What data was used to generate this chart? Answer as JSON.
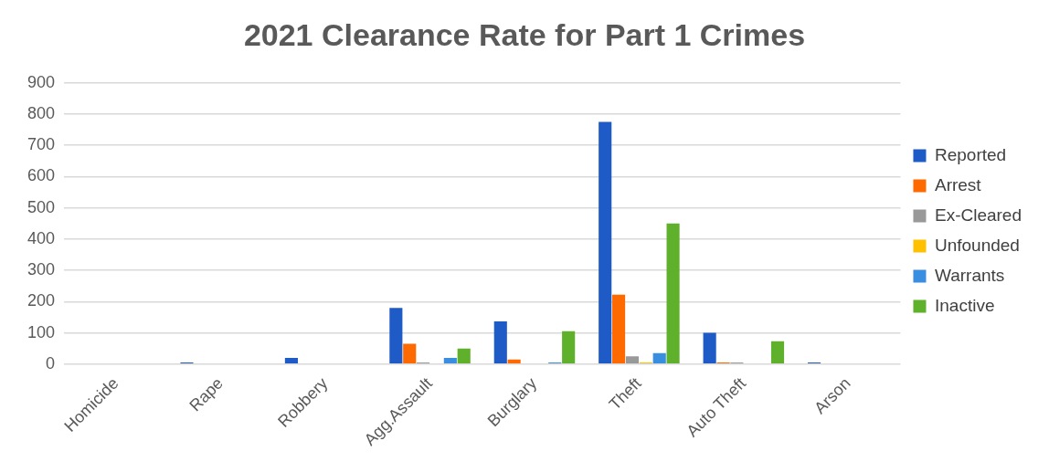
{
  "chart_data": {
    "type": "bar",
    "title": "2021 Clearance Rate for Part 1 Crimes",
    "categories": [
      "Homicide",
      "Rape",
      "Robbery",
      "Agg.Assault",
      "Burglary",
      "Theft",
      "Auto Theft",
      "Arson"
    ],
    "series": [
      {
        "name": "Reported",
        "color": "#1f5bc6",
        "values": [
          0,
          5,
          20,
          180,
          137,
          775,
          100,
          5
        ]
      },
      {
        "name": "Arrest",
        "color": "#ff6a00",
        "values": [
          0,
          0,
          0,
          65,
          15,
          222,
          5,
          0
        ]
      },
      {
        "name": "Ex-Cleared",
        "color": "#999999",
        "values": [
          0,
          0,
          0,
          5,
          0,
          25,
          5,
          0
        ]
      },
      {
        "name": "Unfounded",
        "color": "#ffc000",
        "values": [
          0,
          0,
          0,
          0,
          0,
          5,
          0,
          0
        ]
      },
      {
        "name": "Warrants",
        "color": "#3a8ee0",
        "values": [
          0,
          0,
          0,
          20,
          5,
          35,
          0,
          0
        ]
      },
      {
        "name": "Inactive",
        "color": "#5fb02a",
        "values": [
          0,
          0,
          0,
          50,
          105,
          450,
          73,
          0
        ]
      }
    ],
    "ylim": [
      0,
      900
    ],
    "yticks": [
      0,
      100,
      200,
      300,
      400,
      500,
      600,
      700,
      800,
      900
    ],
    "grid": "y",
    "legend": "right"
  }
}
